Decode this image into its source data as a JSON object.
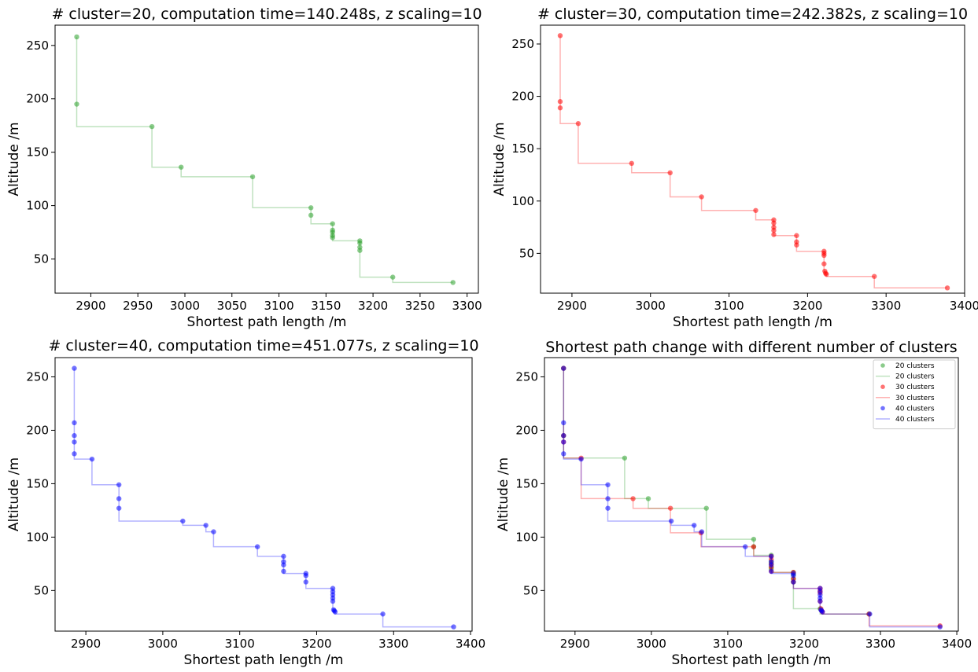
{
  "chart_data": [
    {
      "type": "scatter",
      "title": "# cluster=20, computation time=140.248s, z scaling=10",
      "xlabel": "Shortest path length /m",
      "ylabel": "Altitude /m",
      "xlim": [
        2862,
        3312
      ],
      "ylim": [
        18,
        269
      ],
      "xticks": [
        2900,
        2950,
        3000,
        3050,
        3100,
        3150,
        3200,
        3250,
        3300
      ],
      "yticks": [
        50,
        100,
        150,
        200,
        250
      ],
      "grid": false,
      "series": [
        {
          "color": "#2ca02c",
          "markers": true,
          "step": true,
          "points": [
            [
              2885,
              258
            ],
            [
              2885,
              195
            ],
            [
              2965,
              174
            ],
            [
              2996,
              136
            ],
            [
              3072,
              127
            ],
            [
              3134,
              98
            ],
            [
              3134,
              91
            ],
            [
              3157,
              83
            ],
            [
              3157,
              77
            ],
            [
              3157,
              75
            ],
            [
              3157,
              72
            ],
            [
              3157,
              70
            ],
            [
              3186,
              67
            ],
            [
              3186,
              65
            ],
            [
              3186,
              61
            ],
            [
              3186,
              58
            ],
            [
              3221,
              33
            ],
            [
              3285,
              28
            ]
          ]
        }
      ]
    },
    {
      "type": "scatter",
      "title": "# cluster=30, computation time=242.382s, z scaling=10",
      "xlabel": "Shortest path length /m",
      "ylabel": "Altitude /m",
      "xlim": [
        2860,
        3400
      ],
      "ylim": [
        12,
        268
      ],
      "xticks": [
        2900,
        3000,
        3100,
        3200,
        3300,
        3400
      ],
      "yticks": [
        50,
        100,
        150,
        200,
        250
      ],
      "grid": false,
      "series": [
        {
          "color": "#ff0000",
          "markers": true,
          "step": true,
          "points": [
            [
              2885,
              258
            ],
            [
              2885,
              195
            ],
            [
              2885,
              189
            ],
            [
              2908,
              174
            ],
            [
              2976,
              136
            ],
            [
              3025,
              127
            ],
            [
              3065,
              104
            ],
            [
              3134,
              91
            ],
            [
              3157,
              82
            ],
            [
              3157,
              79
            ],
            [
              3157,
              75
            ],
            [
              3157,
              72
            ],
            [
              3157,
              68
            ],
            [
              3186,
              67
            ],
            [
              3186,
              61
            ],
            [
              3186,
              58
            ],
            [
              3221,
              52
            ],
            [
              3221,
              50
            ],
            [
              3221,
              48
            ],
            [
              3221,
              40
            ],
            [
              3222,
              33
            ],
            [
              3223,
              31
            ],
            [
              3224,
              30
            ],
            [
              3285,
              28
            ],
            [
              3378,
              17
            ]
          ]
        }
      ]
    },
    {
      "type": "scatter",
      "title": "# cluster=40, computation time=451.077s, z scaling=10",
      "xlabel": "Shortest path length /m",
      "ylabel": "Altitude /m",
      "xlim": [
        2860,
        3402
      ],
      "ylim": [
        12,
        268
      ],
      "xticks": [
        2900,
        3000,
        3100,
        3200,
        3300,
        3400
      ],
      "yticks": [
        50,
        100,
        150,
        200,
        250
      ],
      "grid": false,
      "series": [
        {
          "color": "#0000ff",
          "markers": true,
          "step": true,
          "points": [
            [
              2885,
              258
            ],
            [
              2885,
              207
            ],
            [
              2885,
              195
            ],
            [
              2885,
              189
            ],
            [
              2885,
              178
            ],
            [
              2908,
              173
            ],
            [
              2943,
              149
            ],
            [
              2943,
              136
            ],
            [
              2943,
              127
            ],
            [
              3026,
              115
            ],
            [
              3056,
              111
            ],
            [
              3066,
              105
            ],
            [
              3123,
              91
            ],
            [
              3157,
              82
            ],
            [
              3157,
              77
            ],
            [
              3157,
              74
            ],
            [
              3157,
              68
            ],
            [
              3186,
              66
            ],
            [
              3186,
              64
            ],
            [
              3186,
              58
            ],
            [
              3221,
              52
            ],
            [
              3221,
              49
            ],
            [
              3221,
              46
            ],
            [
              3221,
              43
            ],
            [
              3221,
              40
            ],
            [
              3222,
              32
            ],
            [
              3223,
              31
            ],
            [
              3224,
              30
            ],
            [
              3286,
              28
            ],
            [
              3378,
              16
            ]
          ]
        }
      ]
    },
    {
      "type": "scatter",
      "title": "Shortest path change with different number of clusters",
      "xlabel": "Shortest path length /m",
      "ylabel": "Altitude /m",
      "xlim": [
        2860,
        3402
      ],
      "ylim": [
        12,
        268
      ],
      "xticks": [
        2900,
        3000,
        3100,
        3200,
        3300,
        3400
      ],
      "yticks": [
        50,
        100,
        150,
        200,
        250
      ],
      "grid": false,
      "legend": "top-right",
      "legend_entries": [
        "20 clusters",
        "20 clusters",
        "30 clusters",
        "30 clusters",
        "40 clusters",
        "40 clusters"
      ],
      "series": [
        {
          "name": "20 clusters",
          "color": "#2ca02c",
          "markers": true,
          "step": true,
          "points": [
            [
              2885,
              258
            ],
            [
              2885,
              195
            ],
            [
              2965,
              174
            ],
            [
              2996,
              136
            ],
            [
              3072,
              127
            ],
            [
              3134,
              98
            ],
            [
              3134,
              91
            ],
            [
              3157,
              83
            ],
            [
              3157,
              77
            ],
            [
              3157,
              75
            ],
            [
              3157,
              72
            ],
            [
              3157,
              70
            ],
            [
              3186,
              67
            ],
            [
              3186,
              65
            ],
            [
              3186,
              61
            ],
            [
              3186,
              58
            ],
            [
              3221,
              33
            ],
            [
              3285,
              28
            ]
          ]
        },
        {
          "name": "30 clusters",
          "color": "#ff0000",
          "markers": true,
          "step": true,
          "points": [
            [
              2885,
              258
            ],
            [
              2885,
              195
            ],
            [
              2885,
              189
            ],
            [
              2908,
              174
            ],
            [
              2976,
              136
            ],
            [
              3025,
              127
            ],
            [
              3065,
              104
            ],
            [
              3134,
              91
            ],
            [
              3157,
              82
            ],
            [
              3157,
              79
            ],
            [
              3157,
              75
            ],
            [
              3157,
              72
            ],
            [
              3157,
              68
            ],
            [
              3186,
              67
            ],
            [
              3186,
              61
            ],
            [
              3186,
              58
            ],
            [
              3221,
              52
            ],
            [
              3221,
              50
            ],
            [
              3221,
              48
            ],
            [
              3221,
              40
            ],
            [
              3222,
              33
            ],
            [
              3223,
              31
            ],
            [
              3224,
              30
            ],
            [
              3285,
              28
            ],
            [
              3378,
              17
            ]
          ]
        },
        {
          "name": "40 clusters",
          "color": "#0000ff",
          "markers": true,
          "step": true,
          "points": [
            [
              2885,
              258
            ],
            [
              2885,
              207
            ],
            [
              2885,
              195
            ],
            [
              2885,
              189
            ],
            [
              2885,
              178
            ],
            [
              2908,
              173
            ],
            [
              2943,
              149
            ],
            [
              2943,
              136
            ],
            [
              2943,
              127
            ],
            [
              3026,
              115
            ],
            [
              3056,
              111
            ],
            [
              3066,
              105
            ],
            [
              3123,
              91
            ],
            [
              3157,
              82
            ],
            [
              3157,
              77
            ],
            [
              3157,
              74
            ],
            [
              3157,
              68
            ],
            [
              3186,
              66
            ],
            [
              3186,
              64
            ],
            [
              3186,
              58
            ],
            [
              3221,
              52
            ],
            [
              3221,
              49
            ],
            [
              3221,
              46
            ],
            [
              3221,
              43
            ],
            [
              3221,
              40
            ],
            [
              3222,
              32
            ],
            [
              3223,
              31
            ],
            [
              3224,
              30
            ],
            [
              3286,
              28
            ],
            [
              3378,
              16
            ]
          ]
        }
      ]
    }
  ]
}
